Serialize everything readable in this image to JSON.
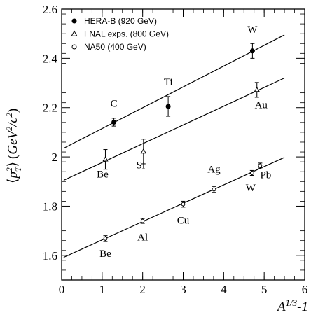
{
  "chart_data": {
    "type": "scatter",
    "xlabel": "A^{1/3}-1",
    "ylabel": "⟨p_T^2⟩ (GeV^2/c^2)",
    "xlim": [
      0,
      6
    ],
    "ylim": [
      1.5,
      2.6
    ],
    "x_ticks": [
      0,
      1,
      2,
      3,
      4,
      5,
      6
    ],
    "y_ticks": [
      1.6,
      1.8,
      2.0,
      2.2,
      2.4,
      2.6
    ],
    "x_tick_labels": [
      "0",
      "1",
      "2",
      "3",
      "4",
      "5",
      "6"
    ],
    "y_tick_labels": [
      "1.6",
      "1.8",
      "2",
      "2.2",
      "2.4",
      "2.6"
    ],
    "legend_position": "top-left",
    "series": [
      {
        "name": "HERA-B (920 GeV)",
        "marker": "filled-circle",
        "points": [
          {
            "x": 1.29,
            "y": 2.141,
            "err": 0.016,
            "label": "C"
          },
          {
            "x": 2.63,
            "y": 2.205,
            "err": 0.04,
            "label": "Ti"
          },
          {
            "x": 4.71,
            "y": 2.43,
            "err": 0.03,
            "label": "W"
          }
        ],
        "fit": {
          "x0": 0.05,
          "y0": 2.035,
          "x1": 5.5,
          "y1": 2.495
        }
      },
      {
        "name": "FNAL exps. (800 GeV)",
        "marker": "open-triangle",
        "points": [
          {
            "x": 1.08,
            "y": 1.99,
            "err": 0.04,
            "label": "Be"
          },
          {
            "x": 2.02,
            "y": 2.022,
            "err": 0.05,
            "label": "Si"
          },
          {
            "x": 4.82,
            "y": 2.272,
            "err": 0.03,
            "label": "Au"
          }
        ],
        "fit": {
          "x0": 0.05,
          "y0": 1.905,
          "x1": 5.5,
          "y1": 2.32
        }
      },
      {
        "name": "NA50 (400 GeV)",
        "marker": "open-circle",
        "points": [
          {
            "x": 1.08,
            "y": 1.668,
            "err": 0.012,
            "label": "Be"
          },
          {
            "x": 2.0,
            "y": 1.74,
            "err": 0.01,
            "label": "Al"
          },
          {
            "x": 3.0,
            "y": 1.808,
            "err": 0.012,
            "label": "Cu"
          },
          {
            "x": 3.76,
            "y": 1.868,
            "err": 0.012,
            "label": "Ag"
          },
          {
            "x": 4.7,
            "y": 1.935,
            "err": 0.01,
            "label": "W"
          },
          {
            "x": 4.9,
            "y": 1.965,
            "err": 0.01,
            "label": "Pb"
          }
        ],
        "fit": {
          "x0": 0.05,
          "y0": 1.592,
          "x1": 5.5,
          "y1": 1.998
        }
      }
    ]
  }
}
